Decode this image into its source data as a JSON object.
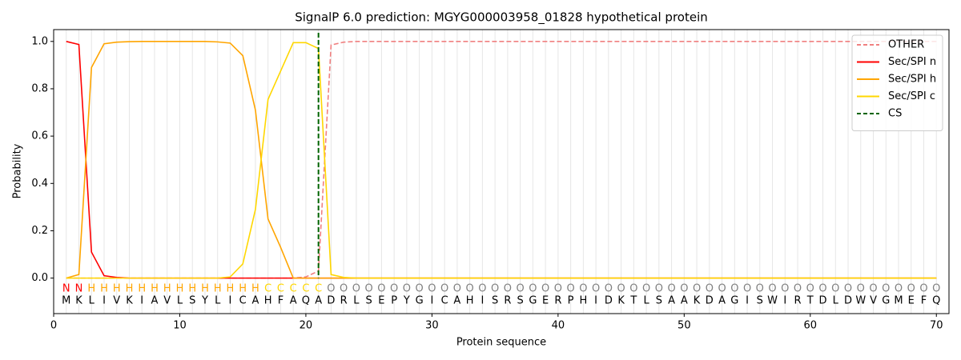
{
  "chart_data": {
    "type": "line",
    "title": "SignalP 6.0 prediction: MGYG000003958_01828 hypothetical protein",
    "x_label": "Protein sequence",
    "y_label": "Probability",
    "xlim": [
      0,
      71
    ],
    "ylim": [
      -0.15,
      1.05
    ],
    "xticks": [
      0,
      10,
      20,
      30,
      40,
      50,
      60,
      70
    ],
    "yticks": [
      {
        "value": 0,
        "label": "0.0"
      },
      0.2,
      0.4,
      0.6,
      0.8,
      {
        "value": 1,
        "label": "1.0"
      }
    ],
    "legend": "upper right",
    "x": [
      1,
      2,
      3,
      4,
      5,
      6,
      7,
      8,
      9,
      10,
      11,
      12,
      13,
      14,
      15,
      16,
      17,
      18,
      19,
      20,
      21,
      22,
      23,
      24,
      25,
      26,
      27,
      28,
      29,
      30,
      31,
      32,
      33,
      34,
      35,
      36,
      37,
      38,
      39,
      40,
      41,
      42,
      43,
      44,
      45,
      46,
      47,
      48,
      49,
      50,
      51,
      52,
      53,
      54,
      55,
      56,
      57,
      58,
      59,
      60,
      61,
      62,
      63,
      64,
      65,
      66,
      67,
      68,
      69,
      70
    ],
    "residues": [
      "M",
      "K",
      "L",
      "I",
      "V",
      "K",
      "I",
      "A",
      "V",
      "L",
      "S",
      "Y",
      "L",
      "I",
      "C",
      "A",
      "H",
      "F",
      "A",
      "Q",
      "A",
      "D",
      "R",
      "L",
      "S",
      "E",
      "P",
      "Y",
      "G",
      "I",
      "C",
      "A",
      "H",
      "I",
      "S",
      "R",
      "S",
      "G",
      "E",
      "R",
      "P",
      "H",
      "I",
      "D",
      "K",
      "T",
      "L",
      "S",
      "A",
      "A",
      "K",
      "D",
      "A",
      "G",
      "I",
      "S",
      "W",
      "I",
      "R",
      "T",
      "D",
      "L",
      "D",
      "W",
      "V",
      "G",
      "M",
      "E",
      "F",
      "Q"
    ],
    "labels": [
      "N",
      "N",
      "H",
      "H",
      "H",
      "H",
      "H",
      "H",
      "H",
      "H",
      "H",
      "H",
      "H",
      "H",
      "H",
      "H",
      "C",
      "C",
      "C",
      "C",
      "C",
      "O",
      "O",
      "O",
      "O",
      "O",
      "O",
      "O",
      "O",
      "O",
      "O",
      "O",
      "O",
      "O",
      "O",
      "O",
      "O",
      "O",
      "O",
      "O",
      "O",
      "O",
      "O",
      "O",
      "O",
      "O",
      "O",
      "O",
      "O",
      "O",
      "O",
      "O",
      "O",
      "O",
      "O",
      "O",
      "O",
      "O",
      "O",
      "O",
      "O",
      "O",
      "O",
      "O",
      "O",
      "O",
      "O",
      "O",
      "O",
      "O"
    ],
    "label_colors": {
      "N": "#ff0000",
      "H": "#ffa500",
      "C": "#ffd700",
      "O": "#808080"
    },
    "series": [
      {
        "name": "OTHER",
        "color": "#f08080",
        "dash": true,
        "values": [
          0,
          0,
          0,
          0,
          0,
          0,
          0,
          0,
          0,
          0,
          0,
          0,
          0,
          0,
          0,
          0,
          0,
          0,
          0,
          0.005,
          0.03,
          0.985,
          0.997,
          1,
          1,
          1,
          1,
          1,
          1,
          1,
          1,
          1,
          1,
          1,
          1,
          1,
          1,
          1,
          1,
          1,
          1,
          1,
          1,
          1,
          1,
          1,
          1,
          1,
          1,
          1,
          1,
          1,
          1,
          1,
          1,
          1,
          1,
          1,
          1,
          1,
          1,
          1,
          1,
          1,
          1,
          1,
          1,
          1,
          1,
          1
        ]
      },
      {
        "name": "Sec/SPI n",
        "color": "#ff0000",
        "values": [
          1,
          0.987,
          0.11,
          0.01,
          0.003,
          0,
          0,
          0,
          0,
          0,
          0,
          0,
          0,
          0,
          0,
          0,
          0,
          0,
          0,
          0,
          0,
          0,
          0,
          0,
          0,
          0,
          0,
          0,
          0,
          0,
          0,
          0,
          0,
          0,
          0,
          0,
          0,
          0,
          0,
          0,
          0,
          0,
          0,
          0,
          0,
          0,
          0,
          0,
          0,
          0,
          0,
          0,
          0,
          0,
          0,
          0,
          0,
          0,
          0,
          0,
          0,
          0,
          0,
          0,
          0,
          0,
          0,
          0,
          0,
          0
        ]
      },
      {
        "name": "Sec/SPI h",
        "color": "#ffa500",
        "values": [
          0,
          0.015,
          0.89,
          0.99,
          0.997,
          0.999,
          1,
          1,
          1,
          1,
          1,
          1,
          0.998,
          0.993,
          0.94,
          0.71,
          0.25,
          0.13,
          0,
          0,
          0,
          0,
          0,
          0,
          0,
          0,
          0,
          0,
          0,
          0,
          0,
          0,
          0,
          0,
          0,
          0,
          0,
          0,
          0,
          0,
          0,
          0,
          0,
          0,
          0,
          0,
          0,
          0,
          0,
          0,
          0,
          0,
          0,
          0,
          0,
          0,
          0,
          0,
          0,
          0,
          0,
          0,
          0,
          0,
          0,
          0,
          0,
          0,
          0,
          0
        ]
      },
      {
        "name": "Sec/SPI c",
        "color": "#ffd700",
        "values": [
          0,
          0,
          0,
          0,
          0,
          0,
          0,
          0,
          0,
          0,
          0,
          0,
          0,
          0.005,
          0.06,
          0.29,
          0.755,
          0.875,
          0.995,
          0.995,
          0.97,
          0.015,
          0.003,
          0,
          0,
          0,
          0,
          0,
          0,
          0,
          0,
          0,
          0,
          0,
          0,
          0,
          0,
          0,
          0,
          0,
          0,
          0,
          0,
          0,
          0,
          0,
          0,
          0,
          0,
          0,
          0,
          0,
          0,
          0,
          0,
          0,
          0,
          0,
          0,
          0,
          0,
          0,
          0,
          0,
          0,
          0,
          0,
          0,
          0,
          0
        ]
      }
    ],
    "markers": [
      {
        "name": "CS",
        "x": 21,
        "color": "#006400"
      }
    ]
  }
}
